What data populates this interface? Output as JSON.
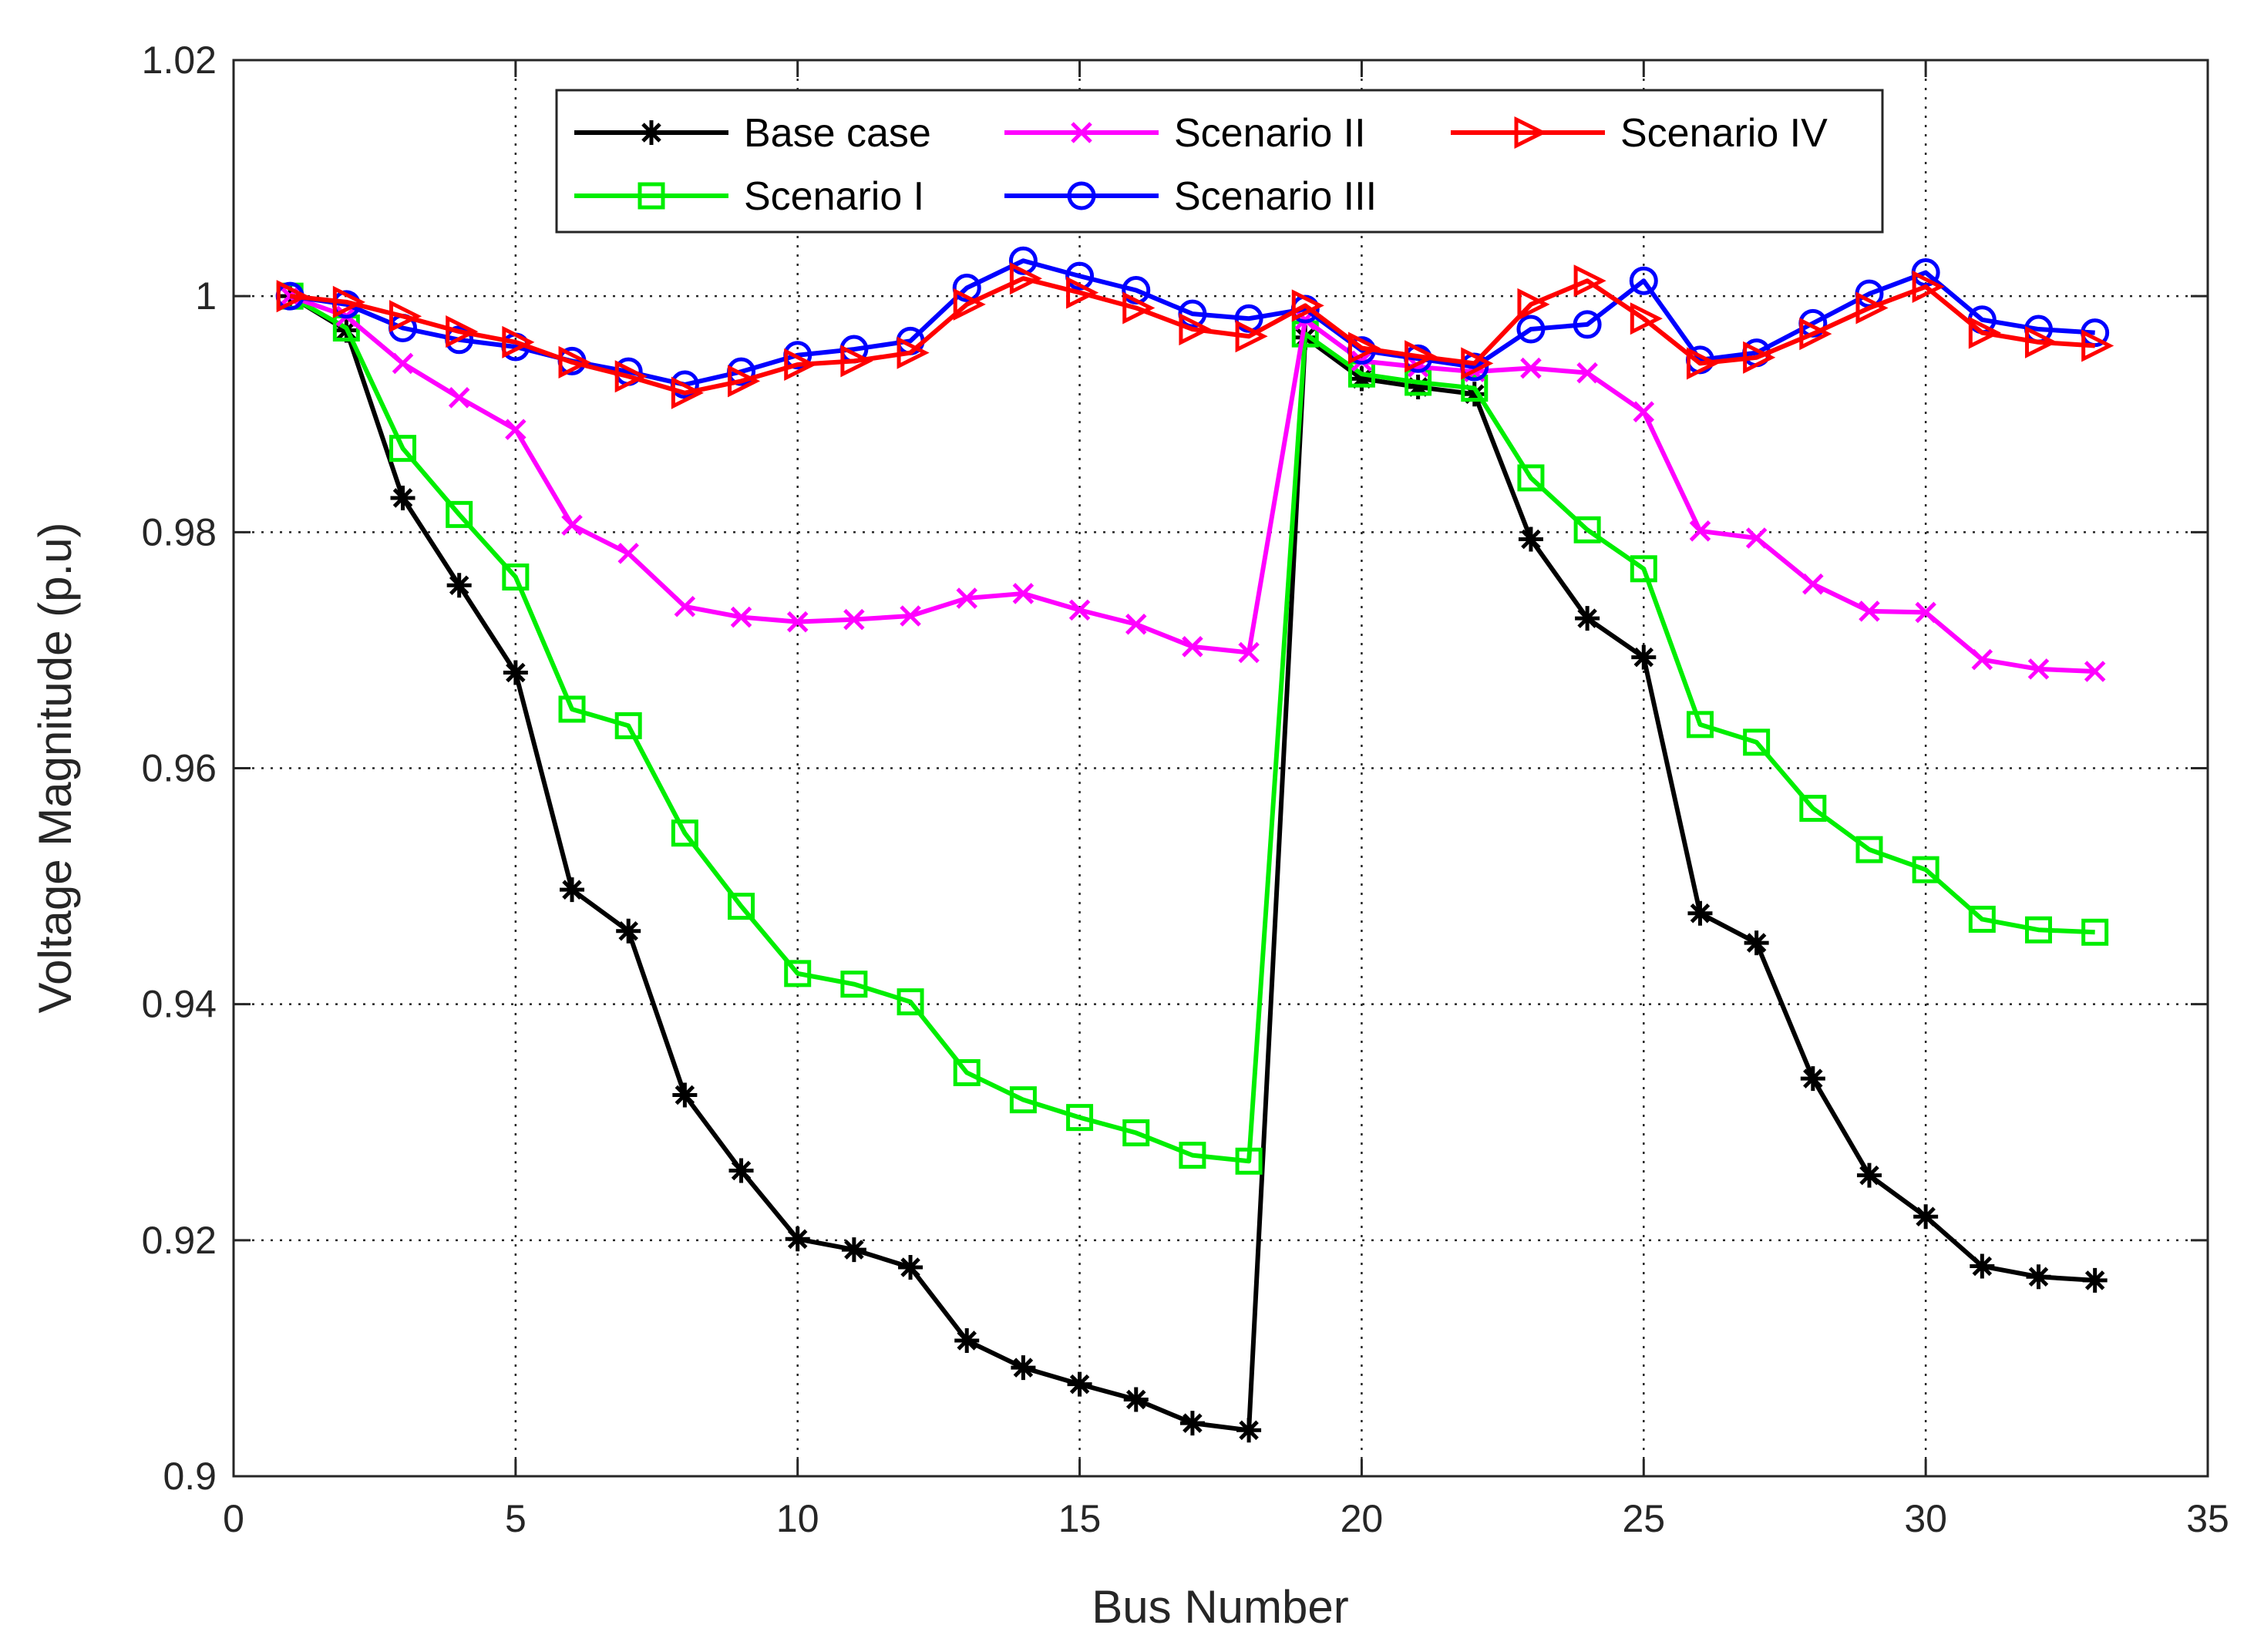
{
  "chart_data": {
    "type": "line",
    "title": "",
    "xlabel": "Bus Number",
    "ylabel": "Voltage Magnitude (p.u)",
    "xlim": [
      0,
      35
    ],
    "ylim": [
      0.9,
      1.02
    ],
    "xticks": [
      0,
      5,
      10,
      15,
      20,
      25,
      30,
      35
    ],
    "yticks": [
      0.9,
      0.92,
      0.94,
      0.96,
      0.98,
      1,
      1.02
    ],
    "xtick_labels": [
      "0",
      "5",
      "10",
      "15",
      "20",
      "25",
      "30",
      "35"
    ],
    "ytick_labels": [
      "0.9",
      "0.92",
      "0.94",
      "0.96",
      "0.98",
      "1",
      "1.02"
    ],
    "grid": true,
    "legend_position": "top",
    "x": [
      1,
      2,
      3,
      4,
      5,
      6,
      7,
      8,
      9,
      10,
      11,
      12,
      13,
      14,
      15,
      16,
      17,
      18,
      19,
      20,
      21,
      22,
      23,
      24,
      25,
      26,
      27,
      28,
      29,
      30,
      31,
      32,
      33
    ],
    "series": [
      {
        "name": "Base case",
        "color": "#000000",
        "marker": "asterisk",
        "values": [
          1.0,
          0.9971,
          0.9829,
          0.9755,
          0.9681,
          0.9497,
          0.9462,
          0.9323,
          0.9259,
          0.9201,
          0.9192,
          0.9177,
          0.9115,
          0.9092,
          0.9078,
          0.9065,
          0.9045,
          0.9039,
          0.9965,
          0.993,
          0.9923,
          0.9917,
          0.9794,
          0.9727,
          0.9694,
          0.9477,
          0.9452,
          0.9337,
          0.9255,
          0.922,
          0.9178,
          0.9169,
          0.9166
        ]
      },
      {
        "name": "Scenario I",
        "color": "#00ee00",
        "marker": "square",
        "values": [
          1.0,
          0.9973,
          0.9871,
          0.9815,
          0.9762,
          0.965,
          0.9636,
          0.9545,
          0.9483,
          0.9426,
          0.9417,
          0.9402,
          0.9342,
          0.9319,
          0.9304,
          0.9291,
          0.9272,
          0.9267,
          0.9968,
          0.9934,
          0.9927,
          0.9922,
          0.9846,
          0.9802,
          0.9769,
          0.9637,
          0.9622,
          0.9566,
          0.9531,
          0.9514,
          0.9472,
          0.9463,
          0.9461
        ]
      },
      {
        "name": "Scenario II",
        "color": "#ff00ff",
        "marker": "x",
        "values": [
          1.0,
          0.9983,
          0.9943,
          0.9914,
          0.9887,
          0.9806,
          0.9782,
          0.9737,
          0.9728,
          0.9724,
          0.9726,
          0.9729,
          0.9744,
          0.9748,
          0.9734,
          0.9722,
          0.9703,
          0.9698,
          0.998,
          0.9945,
          0.994,
          0.9936,
          0.9939,
          0.9935,
          0.9902,
          0.9801,
          0.9795,
          0.9756,
          0.9733,
          0.9732,
          0.9692,
          0.9684,
          0.9682
        ]
      },
      {
        "name": "Scenario III",
        "color": "#0000ff",
        "marker": "circle",
        "values": [
          1.0,
          0.9993,
          0.9973,
          0.9963,
          0.9957,
          0.9945,
          0.9936,
          0.9925,
          0.9936,
          0.995,
          0.9955,
          0.9962,
          1.0007,
          1.003,
          1.0017,
          1.0005,
          0.9985,
          0.9981,
          0.9989,
          0.9954,
          0.9947,
          0.994,
          0.9972,
          0.9976,
          1.0013,
          0.9946,
          0.9952,
          0.9977,
          1.0002,
          1.002,
          0.998,
          0.9972,
          0.9969
        ]
      },
      {
        "name": "Scenario IV",
        "color": "#ff0000",
        "marker": "triangle-right",
        "values": [
          1.0,
          0.9995,
          0.9983,
          0.997,
          0.9961,
          0.9944,
          0.9932,
          0.9918,
          0.9928,
          0.9942,
          0.9945,
          0.9952,
          0.9993,
          1.0015,
          1.0003,
          0.999,
          0.9972,
          0.9966,
          0.9992,
          0.9956,
          0.9949,
          0.9943,
          0.9993,
          1.0013,
          0.9981,
          0.9943,
          0.9948,
          0.9968,
          0.999,
          1.0008,
          0.9969,
          0.9961,
          0.9958
        ]
      }
    ]
  }
}
